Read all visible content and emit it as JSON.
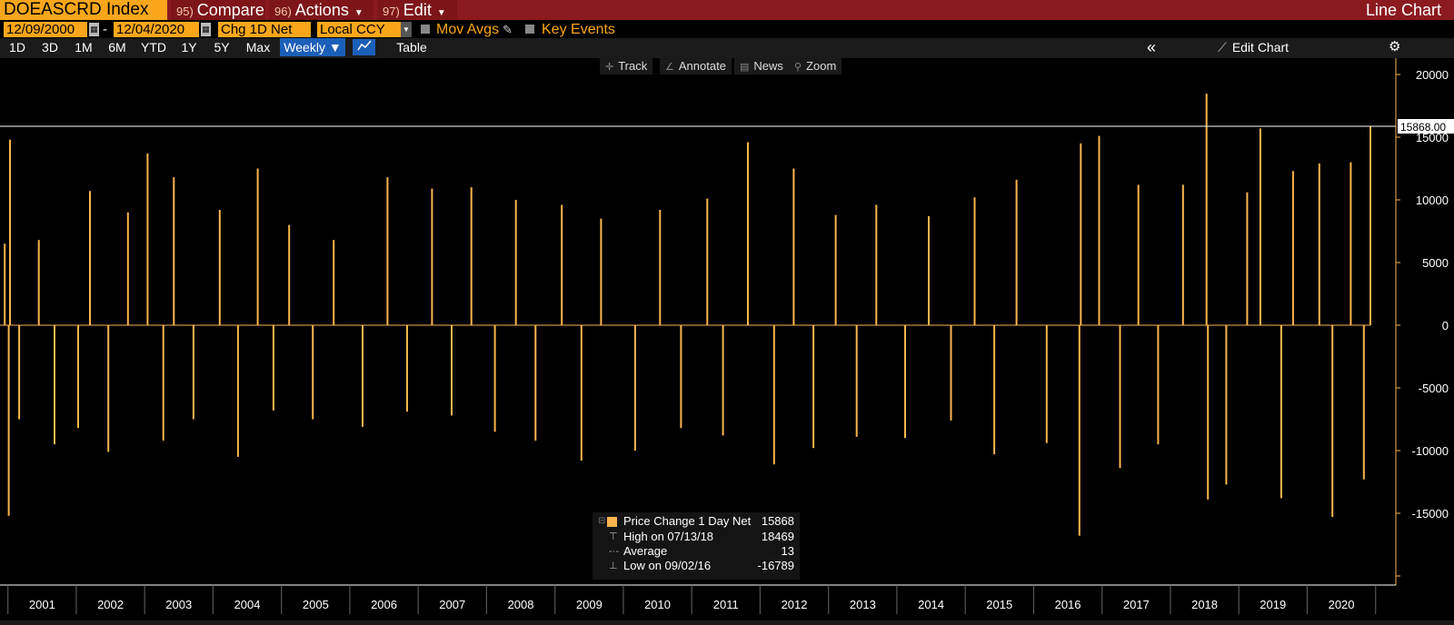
{
  "header": {
    "ticker": "DOEASCRD Index",
    "menu": [
      {
        "num": "95)",
        "label": "Compare",
        "caret": ""
      },
      {
        "num": "96)",
        "label": "Actions",
        "caret": "▼"
      },
      {
        "num": "97)",
        "label": "Edit",
        "caret": "▼"
      }
    ],
    "chart_kind": "Line Chart"
  },
  "controls": {
    "start_date": "12/09/2000",
    "dash": "-",
    "end_date": "12/04/2020",
    "measure": "Chg 1D Net",
    "currency": "Local CCY",
    "mov_avgs": "Mov Avgs",
    "key_events": "Key Events"
  },
  "ranges": {
    "items": [
      "1D",
      "3D",
      "1M",
      "6M",
      "YTD",
      "1Y",
      "5Y",
      "Max"
    ],
    "frequency": "Weekly ▼",
    "table": "Table",
    "collapse": "«",
    "edit_chart": "Edit Chart",
    "settings_icon": "gear-icon",
    "chart_icon": "line-chart-icon"
  },
  "tools": [
    {
      "icon": "crosshair-icon",
      "glyph": "✛",
      "label": "Track"
    },
    {
      "icon": "pencil-icon",
      "glyph": "∠",
      "label": "Annotate"
    },
    {
      "icon": "news-icon",
      "glyph": "▤",
      "label": "News"
    },
    {
      "icon": "magnifier-icon",
      "glyph": "⚲",
      "label": "Zoom"
    }
  ],
  "legend": {
    "series": {
      "label": "Price Change 1 Day Net",
      "value": "15868"
    },
    "high": {
      "label": "High on 07/13/18",
      "value": "18469"
    },
    "average": {
      "label": "Average",
      "value": "13"
    },
    "low": {
      "label": "Low on 09/02/16",
      "value": "-16789"
    }
  },
  "colors": {
    "bar": "#f9b54c",
    "accent": "#f9a61a",
    "title_bg": "#8b1a1f"
  },
  "chart_data": {
    "type": "bar",
    "title": "",
    "series_name": "Price Change 1 Day Net",
    "frequency": "Weekly",
    "x_range": [
      "2000-12-09",
      "2020-12-04"
    ],
    "x_ticks": [
      "2001",
      "2002",
      "2003",
      "2004",
      "2005",
      "2006",
      "2007",
      "2008",
      "2009",
      "2010",
      "2011",
      "2012",
      "2013",
      "2014",
      "2015",
      "2016",
      "2017",
      "2018",
      "2019",
      "2020"
    ],
    "ylim": [
      -20000,
      20000
    ],
    "y_ticks": [
      20000,
      15000,
      10000,
      5000,
      0,
      -5000,
      -10000,
      -15000
    ],
    "y_tick_labels": [
      "20000",
      "15000",
      "10000",
      "5000",
      "0",
      "-5000",
      "-10000",
      "-15000"
    ],
    "last_value": 15868,
    "last_value_label": "15868.00",
    "points": [
      {
        "x": "2000-12-15",
        "y": 6500
      },
      {
        "x": "2001-01-05",
        "y": -15200
      },
      {
        "x": "2001-01-12",
        "y": 14800
      },
      {
        "x": "2001-03-02",
        "y": -7500
      },
      {
        "x": "2001-06-15",
        "y": 6800
      },
      {
        "x": "2001-09-07",
        "y": -9500
      },
      {
        "x": "2002-01-11",
        "y": -8200
      },
      {
        "x": "2002-03-15",
        "y": 10700
      },
      {
        "x": "2002-06-21",
        "y": -10100
      },
      {
        "x": "2002-10-04",
        "y": 9000
      },
      {
        "x": "2003-01-17",
        "y": 13700
      },
      {
        "x": "2003-04-11",
        "y": -9200
      },
      {
        "x": "2003-06-06",
        "y": 11800
      },
      {
        "x": "2003-09-19",
        "y": -7500
      },
      {
        "x": "2004-02-06",
        "y": 9200
      },
      {
        "x": "2004-05-14",
        "y": -10500
      },
      {
        "x": "2004-08-27",
        "y": 12500
      },
      {
        "x": "2004-11-19",
        "y": -6800
      },
      {
        "x": "2005-02-11",
        "y": 8000
      },
      {
        "x": "2005-06-17",
        "y": -7500
      },
      {
        "x": "2005-10-07",
        "y": 6800
      },
      {
        "x": "2006-03-10",
        "y": -8100
      },
      {
        "x": "2006-07-21",
        "y": 11800
      },
      {
        "x": "2006-11-03",
        "y": -6900
      },
      {
        "x": "2007-03-16",
        "y": 10900
      },
      {
        "x": "2007-06-29",
        "y": -7200
      },
      {
        "x": "2007-10-12",
        "y": 11000
      },
      {
        "x": "2008-02-15",
        "y": -8500
      },
      {
        "x": "2008-06-06",
        "y": 10000
      },
      {
        "x": "2008-09-19",
        "y": -9200
      },
      {
        "x": "2009-02-06",
        "y": 9600
      },
      {
        "x": "2009-05-22",
        "y": -10800
      },
      {
        "x": "2009-09-04",
        "y": 8500
      },
      {
        "x": "2010-03-05",
        "y": -10000
      },
      {
        "x": "2010-07-16",
        "y": 9200
      },
      {
        "x": "2010-11-05",
        "y": -8200
      },
      {
        "x": "2011-03-25",
        "y": 10100
      },
      {
        "x": "2011-06-17",
        "y": -8800
      },
      {
        "x": "2011-10-28",
        "y": 14600
      },
      {
        "x": "2012-03-16",
        "y": -11100
      },
      {
        "x": "2012-06-29",
        "y": 12500
      },
      {
        "x": "2012-10-12",
        "y": -9800
      },
      {
        "x": "2013-02-08",
        "y": 8800
      },
      {
        "x": "2013-05-31",
        "y": -8900
      },
      {
        "x": "2013-09-13",
        "y": 9600
      },
      {
        "x": "2014-02-14",
        "y": -9000
      },
      {
        "x": "2014-06-20",
        "y": 8700
      },
      {
        "x": "2014-10-17",
        "y": -7600
      },
      {
        "x": "2015-02-20",
        "y": 10200
      },
      {
        "x": "2015-06-05",
        "y": -10300
      },
      {
        "x": "2015-10-02",
        "y": 11600
      },
      {
        "x": "2016-03-11",
        "y": -9400
      },
      {
        "x": "2016-09-02",
        "y": -16789
      },
      {
        "x": "2016-09-09",
        "y": 14500
      },
      {
        "x": "2016-12-16",
        "y": 15100
      },
      {
        "x": "2017-04-07",
        "y": -11400
      },
      {
        "x": "2017-07-14",
        "y": 11200
      },
      {
        "x": "2017-10-27",
        "y": -9500
      },
      {
        "x": "2018-03-09",
        "y": 11200
      },
      {
        "x": "2018-07-13",
        "y": 18469
      },
      {
        "x": "2018-07-20",
        "y": -13900
      },
      {
        "x": "2018-10-26",
        "y": -12700
      },
      {
        "x": "2019-02-15",
        "y": 10600
      },
      {
        "x": "2019-04-26",
        "y": 15700
      },
      {
        "x": "2019-08-16",
        "y": -13800
      },
      {
        "x": "2019-10-18",
        "y": 12300
      },
      {
        "x": "2020-03-06",
        "y": 12900
      },
      {
        "x": "2020-05-15",
        "y": -15300
      },
      {
        "x": "2020-08-21",
        "y": 13000
      },
      {
        "x": "2020-10-30",
        "y": -12300
      },
      {
        "x": "2020-12-04",
        "y": 15868
      }
    ]
  }
}
